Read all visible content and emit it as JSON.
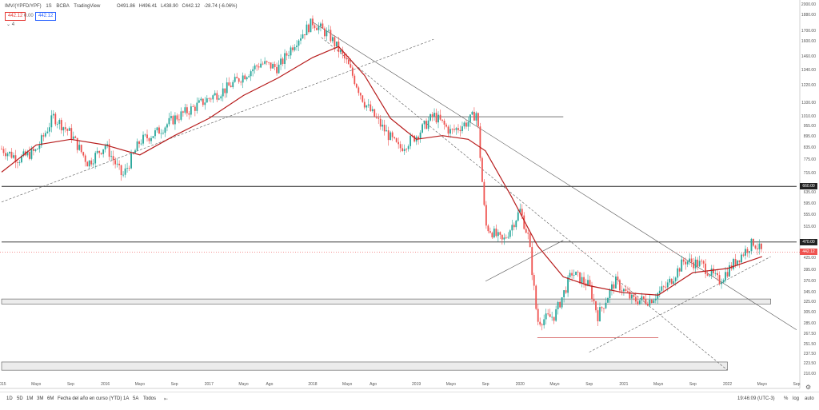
{
  "header": {
    "symbol": "IMV/(YPFD/YPF)",
    "interval": "1S",
    "exchange": "BCBA",
    "brand": "TradingView",
    "ohlc": [
      "O491.86",
      "H496.41",
      "L438.90",
      "C442.12",
      "-28.74 (-6.06%)"
    ],
    "badge_left": "442.12",
    "badge_mid": "0.00",
    "badge_right": "442.12",
    "indicator_count": "4"
  },
  "colors": {
    "up": "#26a69a",
    "down": "#ef5350",
    "ma": "#b71c1c",
    "line": "#555555"
  },
  "bottom_bar": {
    "ranges": [
      "1D",
      "5D",
      "1M",
      "3M",
      "6M",
      "Fecha del año en curso (YTD)",
      "1A",
      "5A",
      "Todos"
    ],
    "time": "19:46:09 (UTC-3)",
    "percent": "%",
    "log": "log",
    "auto": "auto"
  },
  "chart_data": {
    "type": "candlestick",
    "title": "",
    "y_scale": "log",
    "ylim": [
      210,
      2000
    ],
    "x_range": [
      "2015-01",
      "2022-09"
    ],
    "y_ticks": [
      2000.0,
      1880.0,
      1700.0,
      1600.0,
      1460.0,
      1340.0,
      1220.0,
      1100.0,
      1010.0,
      955.0,
      895.0,
      835.0,
      775.0,
      715.0,
      660.0,
      635.0,
      595.0,
      555.0,
      515.0,
      470.0,
      445.0,
      425.0,
      395.0,
      370.0,
      345.0,
      325.0,
      305.0,
      285.0,
      267.5,
      251.5,
      237.5,
      223.5,
      210.0
    ],
    "x_ticks": [
      "2015",
      "Mayo",
      "Sep",
      "2016",
      "Mayo",
      "Sep",
      "2017",
      "Mayo",
      "Ago",
      "2018",
      "Mayo",
      "Ago",
      "2019",
      "Mayo",
      "Sep",
      "2020",
      "Mayo",
      "Sep",
      "2021",
      "Mayo",
      "Sep",
      "2022",
      "Mayo",
      "Sep"
    ],
    "x_tick_dates": [
      "2015-01",
      "2015-05",
      "2015-09",
      "2016-01",
      "2016-05",
      "2016-09",
      "2017-01",
      "2017-05",
      "2017-08",
      "2018-01",
      "2018-05",
      "2018-08",
      "2019-01",
      "2019-05",
      "2019-09",
      "2020-01",
      "2020-05",
      "2020-09",
      "2021-01",
      "2021-05",
      "2021-09",
      "2022-01",
      "2022-05",
      "2022-09"
    ],
    "price_path": [
      [
        "2015-01",
        830
      ],
      [
        "2015-03",
        780
      ],
      [
        "2015-05",
        820
      ],
      [
        "2015-07",
        1010
      ],
      [
        "2015-09",
        910
      ],
      [
        "2015-11",
        760
      ],
      [
        "2016-01",
        850
      ],
      [
        "2016-03",
        700
      ],
      [
        "2016-05",
        870
      ],
      [
        "2016-07",
        920
      ],
      [
        "2016-09",
        1000
      ],
      [
        "2016-11",
        1060
      ],
      [
        "2017-01",
        1130
      ],
      [
        "2017-03",
        1200
      ],
      [
        "2017-05",
        1300
      ],
      [
        "2017-07",
        1400
      ],
      [
        "2017-09",
        1360
      ],
      [
        "2017-11",
        1600
      ],
      [
        "2018-01",
        1800
      ],
      [
        "2018-03",
        1650
      ],
      [
        "2018-05",
        1400
      ],
      [
        "2018-07",
        1100
      ],
      [
        "2018-09",
        950
      ],
      [
        "2018-11",
        830
      ],
      [
        "2019-01",
        900
      ],
      [
        "2019-03",
        1020
      ],
      [
        "2019-05",
        920
      ],
      [
        "2019-07",
        980
      ],
      [
        "2019-08",
        1040
      ],
      [
        "2019-09",
        520
      ],
      [
        "2019-11",
        470
      ],
      [
        "2020-01",
        570
      ],
      [
        "2020-02",
        480
      ],
      [
        "2020-03",
        290
      ],
      [
        "2020-05",
        300
      ],
      [
        "2020-07",
        390
      ],
      [
        "2020-09",
        360
      ],
      [
        "2020-10",
        300
      ],
      [
        "2020-12",
        370
      ],
      [
        "2021-02",
        330
      ],
      [
        "2021-04",
        330
      ],
      [
        "2021-06",
        360
      ],
      [
        "2021-08",
        420
      ],
      [
        "2021-10",
        410
      ],
      [
        "2021-12",
        370
      ],
      [
        "2022-02",
        420
      ],
      [
        "2022-04",
        470
      ],
      [
        "2022-05",
        442
      ]
    ],
    "ma_path": [
      [
        "2015-01",
        720
      ],
      [
        "2015-05",
        850
      ],
      [
        "2015-09",
        880
      ],
      [
        "2016-01",
        850
      ],
      [
        "2016-05",
        800
      ],
      [
        "2016-09",
        900
      ],
      [
        "2017-01",
        1000
      ],
      [
        "2017-05",
        1150
      ],
      [
        "2017-09",
        1280
      ],
      [
        "2018-01",
        1450
      ],
      [
        "2018-04",
        1550
      ],
      [
        "2018-07",
        1300
      ],
      [
        "2018-10",
        1000
      ],
      [
        "2019-01",
        880
      ],
      [
        "2019-04",
        900
      ],
      [
        "2019-07",
        880
      ],
      [
        "2019-09",
        820
      ],
      [
        "2019-12",
        620
      ],
      [
        "2020-03",
        460
      ],
      [
        "2020-06",
        380
      ],
      [
        "2020-09",
        360
      ],
      [
        "2021-01",
        345
      ],
      [
        "2021-05",
        340
      ],
      [
        "2021-09",
        390
      ],
      [
        "2022-01",
        400
      ],
      [
        "2022-05",
        430
      ]
    ],
    "horizontal_levels": [
      {
        "price": 660.0,
        "label": "660.00",
        "start": "2015-01",
        "end": "2022-09"
      },
      {
        "price": 470.0,
        "label": "470.00",
        "start": "2015-01",
        "end": "2022-09"
      },
      {
        "price": 1010.0,
        "start": "2017-01",
        "end": "2020-06"
      },
      {
        "price": 262.0,
        "start": "2020-03",
        "end": "2021-05"
      }
    ],
    "zones": [
      {
        "low": 322,
        "high": 332,
        "start": "2015-01",
        "end": "2022-06"
      },
      {
        "low": 215,
        "high": 226,
        "start": "2015-01",
        "end": "2022-01"
      }
    ],
    "trendlines": [
      {
        "from": [
          "2018-01",
          1800
        ],
        "to": [
          "2022-09",
          275
        ],
        "style": "solid"
      },
      {
        "from": [
          "2015-01",
          600
        ],
        "to": [
          "2019-03",
          1620
        ],
        "style": "dashed"
      },
      {
        "from": [
          "2018-02",
          1640
        ],
        "to": [
          "2022-01",
          215
        ],
        "style": "dashed"
      },
      {
        "from": [
          "2020-09",
          240
        ],
        "to": [
          "2022-06",
          430
        ],
        "style": "dashed"
      },
      {
        "from": [
          "2019-09",
          370
        ],
        "to": [
          "2020-06",
          475
        ],
        "style": "solid"
      }
    ],
    "last_price": {
      "price": 442.12,
      "label": "442.12"
    }
  }
}
